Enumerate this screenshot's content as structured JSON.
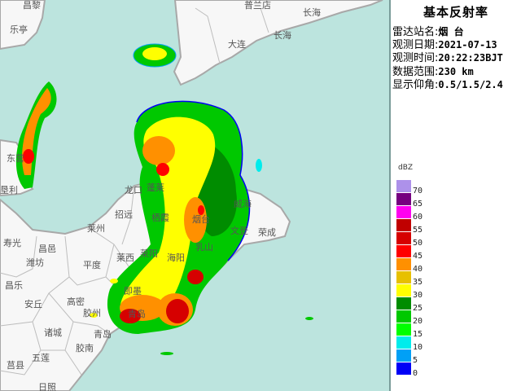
{
  "panel": {
    "title": "基本反射率",
    "rows": [
      {
        "key": "雷达站名:",
        "value": "烟 台"
      },
      {
        "key": "观测日期:",
        "value": "2021-07-13"
      },
      {
        "key": "观测时间:",
        "value": "20:22:23BJT"
      },
      {
        "key": "数据范围:",
        "value": "230 km"
      },
      {
        "key": "显示仰角:",
        "value": "0.5/1.5/2.4"
      }
    ]
  },
  "legend": {
    "unit": "dBZ",
    "items": [
      {
        "label": "70",
        "color": "#ad91ea"
      },
      {
        "label": "65",
        "color": "#760080"
      },
      {
        "label": "60",
        "color": "#ff00f0"
      },
      {
        "label": "55",
        "color": "#c00000"
      },
      {
        "label": "50",
        "color": "#d60000"
      },
      {
        "label": "45",
        "color": "#ff0000"
      },
      {
        "label": "40",
        "color": "#ff9000"
      },
      {
        "label": "35",
        "color": "#e7c000"
      },
      {
        "label": "30",
        "color": "#ffff00"
      },
      {
        "label": "25",
        "color": "#008c00"
      },
      {
        "label": "20",
        "color": "#00c800"
      },
      {
        "label": "15",
        "color": "#00ff00"
      },
      {
        "label": "10",
        "color": "#00ecec"
      },
      {
        "label": "5",
        "color": "#01a0f6"
      },
      {
        "label": "0",
        "color": "#0000f6"
      }
    ]
  },
  "map": {
    "sea_color": "#bce4de",
    "land_color": "#f7f7f7",
    "places": [
      "昌黎",
      "乐亭",
      "普兰店",
      "大连",
      "长海",
      "长海",
      "东营",
      "垦利",
      "龙口",
      "蓬莱",
      "招远",
      "栖霞",
      "烟台",
      "威海",
      "文登",
      "荣成",
      "乳山",
      "莱阳",
      "海阳",
      "莱西",
      "莱州",
      "寿光",
      "昌邑",
      "潍坊",
      "平度",
      "昌乐",
      "安丘",
      "高密",
      "胶州",
      "即墨",
      "青岛",
      "青岛",
      "诸城",
      "胶南",
      "五莲",
      "莒县",
      "日照"
    ]
  }
}
